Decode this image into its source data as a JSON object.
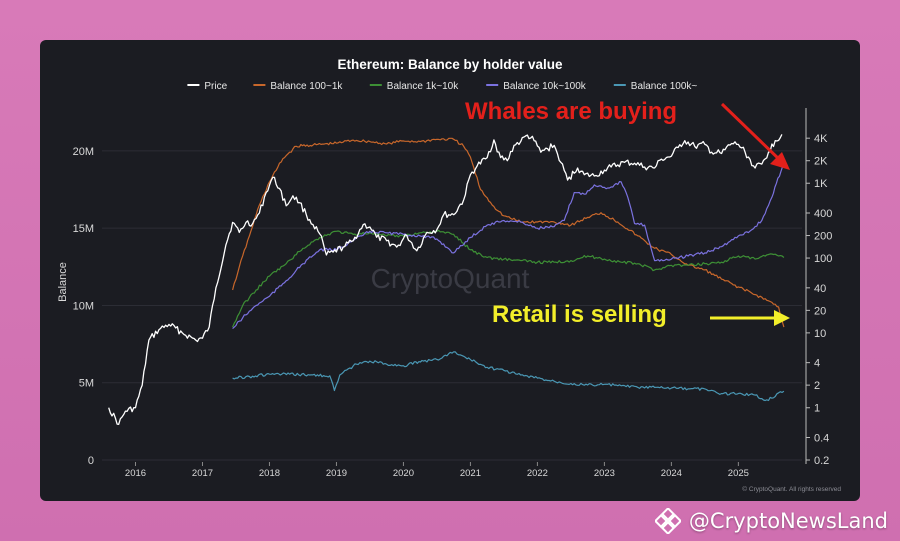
{
  "chart_data": {
    "type": "line",
    "title": "Ethereum: Balance by holder value",
    "ylabel": "Balance",
    "ylim": [
      0,
      22000000
    ],
    "y2_log": true,
    "y2lim": [
      0.2,
      7000
    ],
    "yticks": [
      "0",
      "5M",
      "10M",
      "15M",
      "20M"
    ],
    "y2ticks": [
      "0.2",
      "0.4",
      "1",
      "2",
      "4",
      "10",
      "20",
      "40",
      "100",
      "200",
      "400",
      "1K",
      "2K",
      "4K"
    ],
    "x_ticks": [
      "2016",
      "2017",
      "2018",
      "2019",
      "2020",
      "2021",
      "2022",
      "2023",
      "2024",
      "2025"
    ],
    "legend_position": "top",
    "grid": true,
    "series": [
      {
        "name": "Price",
        "color": "#ffffff",
        "axis": "right",
        "points": [
          [
            2015.6,
            1.0
          ],
          [
            2015.75,
            0.6
          ],
          [
            2015.85,
            0.9
          ],
          [
            2016.0,
            1.0
          ],
          [
            2016.1,
            2.0
          ],
          [
            2016.2,
            8
          ],
          [
            2016.35,
            11
          ],
          [
            2016.5,
            13
          ],
          [
            2016.7,
            10
          ],
          [
            2016.9,
            8
          ],
          [
            2017.0,
            8.5
          ],
          [
            2017.1,
            12
          ],
          [
            2017.2,
            40
          ],
          [
            2017.35,
            150
          ],
          [
            2017.45,
            300
          ],
          [
            2017.55,
            220
          ],
          [
            2017.65,
            300
          ],
          [
            2017.75,
            290
          ],
          [
            2017.85,
            400
          ],
          [
            2017.95,
            750
          ],
          [
            2018.05,
            1200
          ],
          [
            2018.15,
            850
          ],
          [
            2018.25,
            500
          ],
          [
            2018.35,
            680
          ],
          [
            2018.45,
            550
          ],
          [
            2018.55,
            380
          ],
          [
            2018.65,
            280
          ],
          [
            2018.75,
            210
          ],
          [
            2018.85,
            110
          ],
          [
            2018.95,
            120
          ],
          [
            2019.1,
            140
          ],
          [
            2019.25,
            170
          ],
          [
            2019.4,
            280
          ],
          [
            2019.5,
            260
          ],
          [
            2019.6,
            190
          ],
          [
            2019.75,
            170
          ],
          [
            2019.9,
            140
          ],
          [
            2020.05,
            200
          ],
          [
            2020.2,
            125
          ],
          [
            2020.35,
            220
          ],
          [
            2020.5,
            240
          ],
          [
            2020.6,
            380
          ],
          [
            2020.75,
            380
          ],
          [
            2020.9,
            600
          ],
          [
            2021.0,
            1300
          ],
          [
            2021.1,
            1700
          ],
          [
            2021.25,
            2200
          ],
          [
            2021.35,
            3800
          ],
          [
            2021.45,
            2200
          ],
          [
            2021.55,
            2000
          ],
          [
            2021.65,
            3200
          ],
          [
            2021.75,
            3600
          ],
          [
            2021.85,
            4400
          ],
          [
            2021.95,
            3700
          ],
          [
            2022.05,
            2600
          ],
          [
            2022.15,
            2900
          ],
          [
            2022.25,
            3200
          ],
          [
            2022.35,
            1900
          ],
          [
            2022.45,
            1100
          ],
          [
            2022.6,
            1600
          ],
          [
            2022.7,
            1300
          ],
          [
            2022.85,
            1250
          ],
          [
            2023.0,
            1500
          ],
          [
            2023.1,
            1650
          ],
          [
            2023.3,
            1900
          ],
          [
            2023.45,
            1850
          ],
          [
            2023.6,
            1650
          ],
          [
            2023.75,
            1600
          ],
          [
            2023.85,
            2100
          ],
          [
            2024.0,
            2300
          ],
          [
            2024.1,
            3000
          ],
          [
            2024.2,
            3700
          ],
          [
            2024.35,
            3100
          ],
          [
            2024.5,
            3300
          ],
          [
            2024.6,
            2600
          ],
          [
            2024.75,
            2500
          ],
          [
            2024.9,
            3400
          ],
          [
            2025.0,
            3300
          ],
          [
            2025.1,
            2600
          ],
          [
            2025.25,
            1600
          ],
          [
            2025.35,
            1800
          ],
          [
            2025.45,
            2600
          ],
          [
            2025.55,
            3700
          ],
          [
            2025.65,
            4500
          ]
        ]
      },
      {
        "name": "Balance 100~1k",
        "color": "#c8672b",
        "axis": "left",
        "points": [
          [
            2017.45,
            11000000
          ],
          [
            2017.55,
            12500000
          ],
          [
            2017.7,
            14500000
          ],
          [
            2017.85,
            16500000
          ],
          [
            2018.0,
            18000000
          ],
          [
            2018.2,
            19500000
          ],
          [
            2018.4,
            20300000
          ],
          [
            2018.7,
            20400000
          ],
          [
            2019.0,
            20500000
          ],
          [
            2019.25,
            20700000
          ],
          [
            2019.5,
            20600000
          ],
          [
            2019.75,
            20450000
          ],
          [
            2020.0,
            20650000
          ],
          [
            2020.25,
            20600000
          ],
          [
            2020.5,
            20750000
          ],
          [
            2020.75,
            20750000
          ],
          [
            2020.9,
            20300000
          ],
          [
            2021.0,
            19600000
          ],
          [
            2021.15,
            17500000
          ],
          [
            2021.35,
            16400000
          ],
          [
            2021.5,
            15800000
          ],
          [
            2021.75,
            15400000
          ],
          [
            2022.0,
            15400000
          ],
          [
            2022.25,
            15400000
          ],
          [
            2022.5,
            15200000
          ],
          [
            2022.75,
            15700000
          ],
          [
            2022.95,
            16000000
          ],
          [
            2023.2,
            15400000
          ],
          [
            2023.5,
            14500000
          ],
          [
            2023.75,
            13700000
          ],
          [
            2024.0,
            13300000
          ],
          [
            2024.25,
            12600000
          ],
          [
            2024.5,
            12300000
          ],
          [
            2024.75,
            11700000
          ],
          [
            2025.0,
            11200000
          ],
          [
            2025.25,
            10700000
          ],
          [
            2025.45,
            10300000
          ],
          [
            2025.6,
            9900000
          ],
          [
            2025.68,
            8600000
          ]
        ]
      },
      {
        "name": "Balance 1k~10k",
        "color": "#3d8f35",
        "axis": "left",
        "points": [
          [
            2017.45,
            8600000
          ],
          [
            2017.6,
            10000000
          ],
          [
            2017.8,
            11000000
          ],
          [
            2018.0,
            11900000
          ],
          [
            2018.25,
            12700000
          ],
          [
            2018.5,
            13700000
          ],
          [
            2018.75,
            14400000
          ],
          [
            2019.0,
            14800000
          ],
          [
            2019.25,
            14600000
          ],
          [
            2019.5,
            14700000
          ],
          [
            2019.75,
            14500000
          ],
          [
            2020.0,
            14500000
          ],
          [
            2020.25,
            14700000
          ],
          [
            2020.5,
            14800000
          ],
          [
            2020.75,
            14600000
          ],
          [
            2021.0,
            13600000
          ],
          [
            2021.25,
            13100000
          ],
          [
            2021.5,
            13000000
          ],
          [
            2021.75,
            12900000
          ],
          [
            2022.0,
            12800000
          ],
          [
            2022.25,
            12800000
          ],
          [
            2022.5,
            12900000
          ],
          [
            2022.75,
            13200000
          ],
          [
            2023.0,
            13000000
          ],
          [
            2023.25,
            12800000
          ],
          [
            2023.5,
            12700000
          ],
          [
            2023.75,
            12300000
          ],
          [
            2024.0,
            12600000
          ],
          [
            2024.25,
            12600000
          ],
          [
            2024.5,
            12700000
          ],
          [
            2024.75,
            12800000
          ],
          [
            2025.0,
            13200000
          ],
          [
            2025.25,
            13000000
          ],
          [
            2025.45,
            13300000
          ],
          [
            2025.6,
            13200000
          ],
          [
            2025.68,
            13100000
          ]
        ]
      },
      {
        "name": "Balance 10k~100k",
        "color": "#7b72e0",
        "axis": "left",
        "points": [
          [
            2017.45,
            8500000
          ],
          [
            2017.6,
            9200000
          ],
          [
            2017.8,
            10000000
          ],
          [
            2018.0,
            10600000
          ],
          [
            2018.25,
            11600000
          ],
          [
            2018.5,
            12700000
          ],
          [
            2018.75,
            13600000
          ],
          [
            2019.0,
            13600000
          ],
          [
            2019.25,
            14200000
          ],
          [
            2019.5,
            14800000
          ],
          [
            2019.75,
            14700000
          ],
          [
            2020.0,
            14600000
          ],
          [
            2020.25,
            14500000
          ],
          [
            2020.5,
            14300000
          ],
          [
            2020.75,
            13400000
          ],
          [
            2021.0,
            14400000
          ],
          [
            2021.25,
            15200000
          ],
          [
            2021.5,
            15500000
          ],
          [
            2021.75,
            15400000
          ],
          [
            2022.0,
            15000000
          ],
          [
            2022.25,
            15100000
          ],
          [
            2022.4,
            15500000
          ],
          [
            2022.55,
            17300000
          ],
          [
            2022.7,
            17200000
          ],
          [
            2022.85,
            17800000
          ],
          [
            2023.05,
            17600000
          ],
          [
            2023.25,
            18000000
          ],
          [
            2023.35,
            17000000
          ],
          [
            2023.45,
            15300000
          ],
          [
            2023.6,
            15200000
          ],
          [
            2023.75,
            12900000
          ],
          [
            2024.0,
            13000000
          ],
          [
            2024.25,
            13200000
          ],
          [
            2024.5,
            13400000
          ],
          [
            2024.75,
            13800000
          ],
          [
            2025.0,
            14500000
          ],
          [
            2025.2,
            14900000
          ],
          [
            2025.35,
            15500000
          ],
          [
            2025.5,
            17000000
          ],
          [
            2025.68,
            19300000
          ]
        ]
      },
      {
        "name": "Balance 100k~",
        "color": "#4a97b4",
        "axis": "left",
        "points": [
          [
            2017.45,
            5300000
          ],
          [
            2017.7,
            5400000
          ],
          [
            2018.0,
            5550000
          ],
          [
            2018.3,
            5550000
          ],
          [
            2018.6,
            5500000
          ],
          [
            2018.9,
            5450000
          ],
          [
            2018.97,
            4500000
          ],
          [
            2019.05,
            5500000
          ],
          [
            2019.3,
            6200000
          ],
          [
            2019.5,
            6400000
          ],
          [
            2019.75,
            6200000
          ],
          [
            2020.0,
            6100000
          ],
          [
            2020.3,
            6400000
          ],
          [
            2020.5,
            6500000
          ],
          [
            2020.75,
            7000000
          ],
          [
            2021.0,
            6500000
          ],
          [
            2021.25,
            6000000
          ],
          [
            2021.5,
            5800000
          ],
          [
            2021.75,
            5500000
          ],
          [
            2022.0,
            5300000
          ],
          [
            2022.25,
            5100000
          ],
          [
            2022.5,
            4950000
          ],
          [
            2022.75,
            4850000
          ],
          [
            2023.0,
            4900000
          ],
          [
            2023.25,
            4800000
          ],
          [
            2023.5,
            4700000
          ],
          [
            2023.75,
            4700000
          ],
          [
            2024.0,
            4650000
          ],
          [
            2024.25,
            4600000
          ],
          [
            2024.5,
            4600000
          ],
          [
            2024.7,
            4300000
          ],
          [
            2025.0,
            4300000
          ],
          [
            2025.25,
            4200000
          ],
          [
            2025.4,
            3850000
          ],
          [
            2025.5,
            4000000
          ],
          [
            2025.6,
            4350000
          ],
          [
            2025.68,
            4450000
          ]
        ]
      }
    ]
  },
  "annotations": {
    "whales": "Whales are buying",
    "retail": "Retail is selling",
    "whales_color": "#e3201b",
    "retail_color": "#f2ee2a"
  },
  "watermark": "CryptoQuant",
  "copyright": "© CryptoQuant. All rights reserved",
  "attribution": "@CryptoNewsLand"
}
